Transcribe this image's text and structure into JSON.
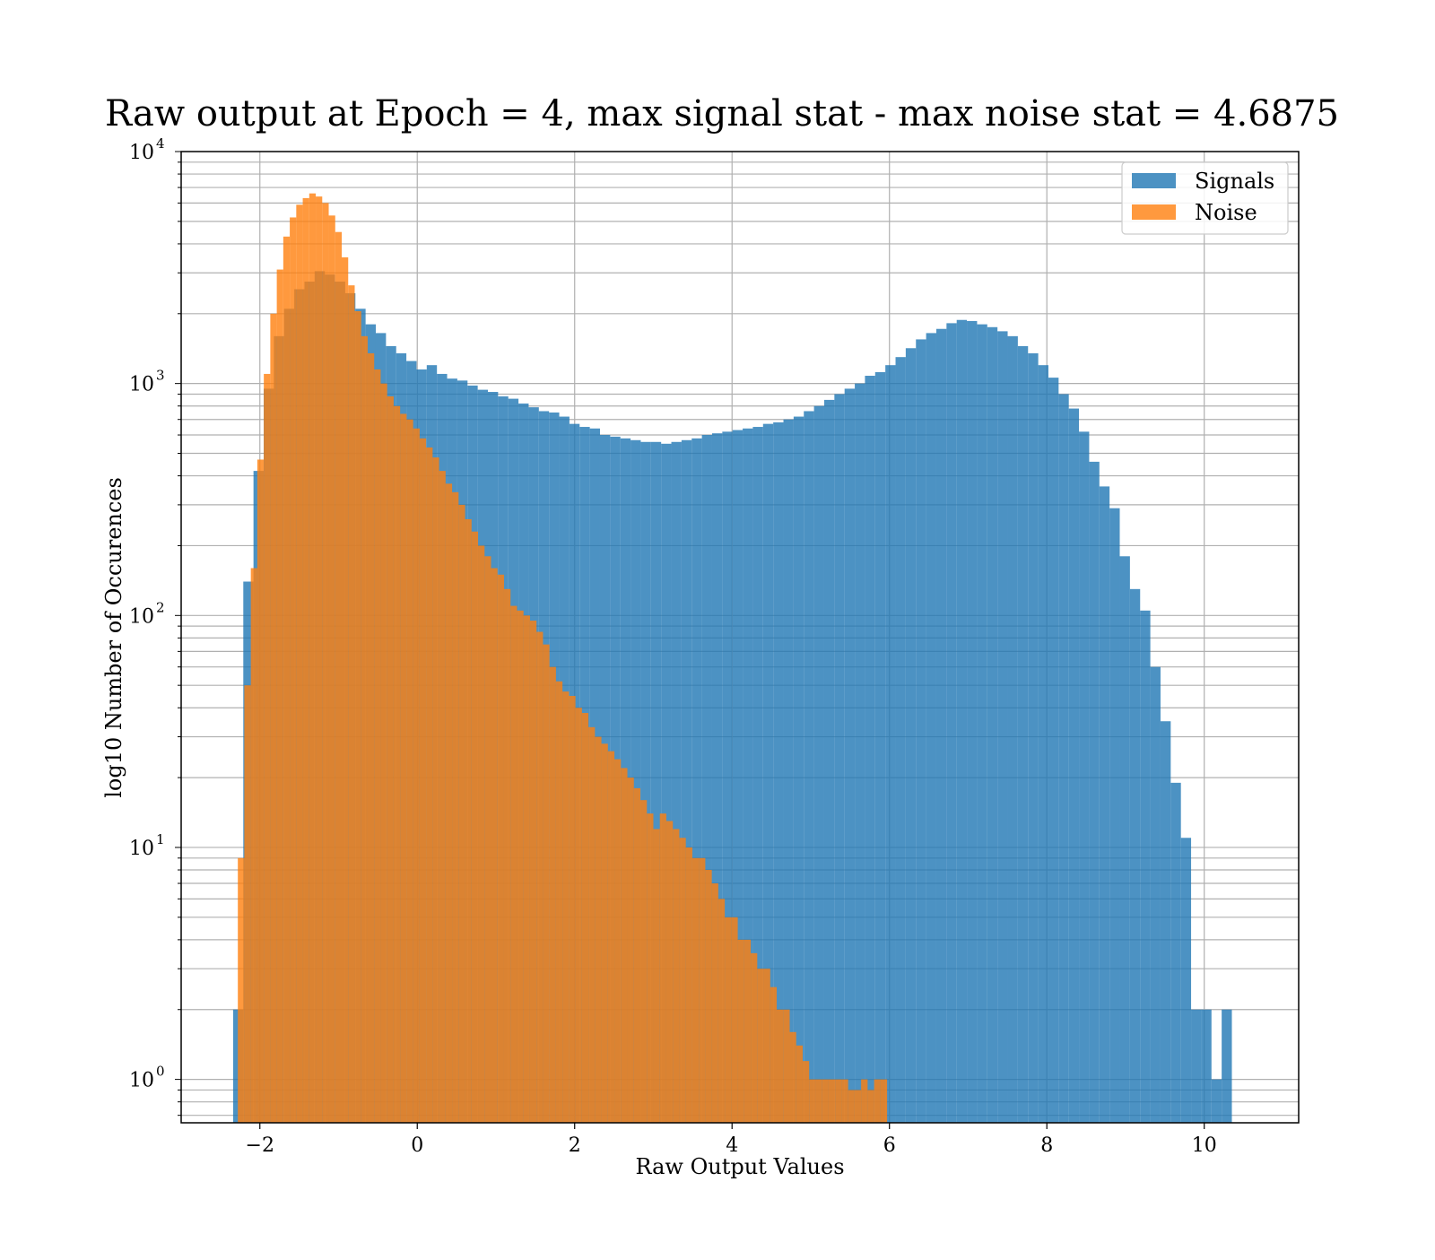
{
  "chart_data": {
    "type": "bar",
    "title": "Raw output at Epoch = 4, max signal stat - max noise stat = 4.6875",
    "xlabel": "Raw Output Values",
    "ylabel": "log10 Number of Occurences",
    "xlim": [
      -3.0,
      11.2
    ],
    "ylim": [
      0.65,
      10000
    ],
    "yscale": "log",
    "grid": true,
    "legend_position": "top-right",
    "x_ticks": [
      -2,
      0,
      2,
      4,
      6,
      8,
      10
    ],
    "x_tick_labels": [
      "−2",
      "0",
      "2",
      "4",
      "6",
      "8",
      "10"
    ],
    "y_ticks": [
      {
        "value": 1,
        "base": "10",
        "exp": "0"
      },
      {
        "value": 10,
        "base": "10",
        "exp": "1"
      },
      {
        "value": 100,
        "base": "10",
        "exp": "2"
      },
      {
        "value": 1000,
        "base": "10",
        "exp": "3"
      },
      {
        "value": 10000,
        "base": "10",
        "exp": "4"
      }
    ],
    "series": [
      {
        "name": "Signals",
        "color": "#1f77b4",
        "bin_start": -2.34,
        "bin_width": 0.1295,
        "values": [
          2,
          140,
          420,
          950,
          1600,
          2100,
          2550,
          2750,
          3050,
          2950,
          2750,
          2450,
          2100,
          1800,
          1650,
          1450,
          1350,
          1250,
          1150,
          1200,
          1100,
          1050,
          1030,
          980,
          940,
          920,
          880,
          860,
          820,
          790,
          760,
          750,
          720,
          670,
          650,
          640,
          600,
          590,
          580,
          570,
          560,
          560,
          550,
          560,
          570,
          580,
          600,
          610,
          620,
          630,
          640,
          650,
          670,
          680,
          700,
          720,
          760,
          800,
          850,
          900,
          950,
          1000,
          1080,
          1120,
          1200,
          1300,
          1420,
          1550,
          1650,
          1720,
          1820,
          1880,
          1860,
          1800,
          1750,
          1680,
          1600,
          1450,
          1350,
          1200,
          1060,
          900,
          780,
          620,
          460,
          360,
          290,
          180,
          130,
          105,
          60,
          35,
          19,
          11,
          2,
          2,
          1,
          2
        ]
      },
      {
        "name": "Noise",
        "color": "#ff7f0e",
        "bin_start": -2.28,
        "bin_width": 0.0825,
        "values": [
          9,
          50,
          160,
          470,
          1100,
          2000,
          3100,
          4300,
          5200,
          5900,
          6300,
          6600,
          6400,
          6000,
          5300,
          4500,
          3500,
          2650,
          2050,
          1600,
          1350,
          1150,
          1000,
          880,
          800,
          740,
          700,
          640,
          580,
          530,
          480,
          420,
          370,
          340,
          300,
          260,
          230,
          200,
          180,
          160,
          150,
          130,
          110,
          105,
          100,
          95,
          85,
          75,
          60,
          52,
          47,
          45,
          40,
          38,
          33,
          30,
          28,
          26,
          24,
          22,
          20,
          18,
          16,
          14,
          12,
          14,
          13,
          12,
          11,
          10,
          9,
          9,
          8,
          7,
          6,
          5,
          5,
          4,
          4,
          3.5,
          3,
          3,
          2.5,
          2,
          2,
          1.6,
          1.4,
          1.2,
          1,
          1,
          1,
          1,
          1,
          1,
          0.9,
          0.9,
          1,
          0.9,
          1,
          1
        ]
      }
    ]
  }
}
